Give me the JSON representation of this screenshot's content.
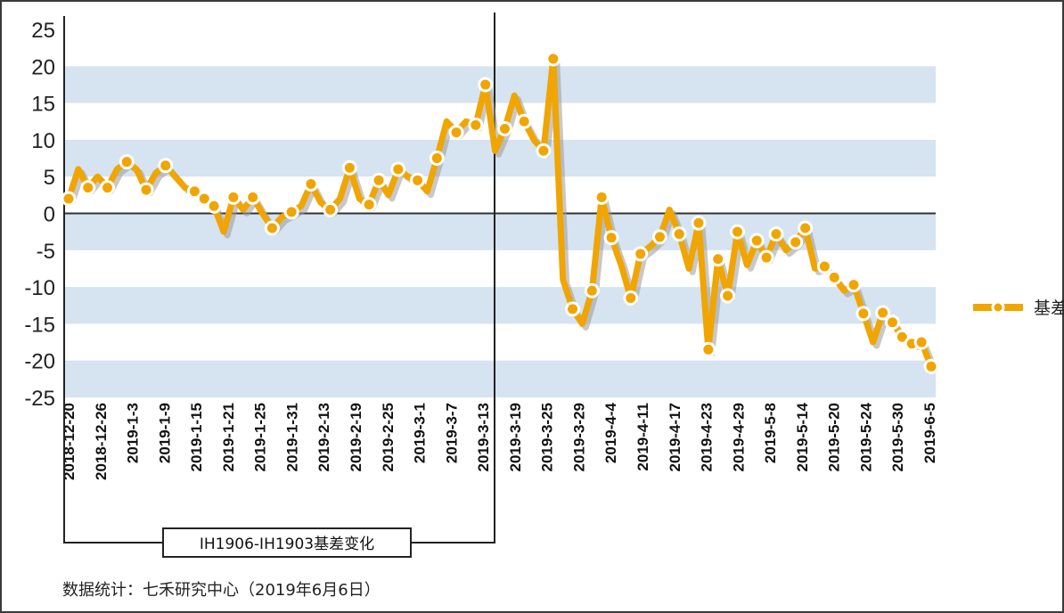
{
  "chart_data": {
    "type": "line",
    "title": "",
    "xlabel": "",
    "ylabel": "",
    "ylim": [
      -25,
      25
    ],
    "yticks": [
      25,
      20,
      15,
      10,
      5,
      0,
      -5,
      -10,
      -15,
      -20,
      -25
    ],
    "grid": "alternating horizontal bands",
    "legend_position": "right",
    "x_tick_labels": [
      "2018-12-20",
      "2018-12-26",
      "2019-1-3",
      "2019-1-9",
      "2019-1-15",
      "2019-1-21",
      "2019-1-25",
      "2019-1-31",
      "2019-2-13",
      "2019-2-19",
      "2019-2-25",
      "2019-3-1",
      "2019-3-7",
      "2019-3-13",
      "2019-3-19",
      "2019-3-25",
      "2019-3-29",
      "2019-4-4",
      "2019-4-11",
      "2019-4-17",
      "2019-4-23",
      "2019-4-29",
      "2019-5-8",
      "2019-5-14",
      "2019-5-20",
      "2019-5-24",
      "2019-5-30",
      "2019-6-5"
    ],
    "series": [
      {
        "name": "基差",
        "color": "#F0A500",
        "values": [
          2,
          6,
          3.5,
          5,
          3.5,
          6,
          7,
          6,
          3.2,
          5.5,
          6.5,
          5,
          3.5,
          3,
          2,
          1,
          -2.5,
          2.2,
          0.5,
          2.2,
          0,
          -2,
          -0.5,
          0.2,
          1,
          4,
          1.5,
          0.5,
          2,
          6.2,
          2,
          1.2,
          4.5,
          2.5,
          6,
          5,
          4.5,
          3,
          7.5,
          12.5,
          11,
          12.5,
          12,
          17.5,
          8.5,
          11.5,
          16,
          12.5,
          10,
          8.5,
          21,
          -9,
          -13,
          -15,
          -10.5,
          2.2,
          -3.3,
          -7,
          -11.5,
          -5.5,
          -4.5,
          -3.2,
          0.5,
          -2.8,
          -7.5,
          -1.3,
          -18.5,
          -6.2,
          -11.2,
          -2.5,
          -7,
          -3.7,
          -6,
          -2.8,
          -5,
          -3.9,
          -2,
          -7.5,
          -7.2,
          -8.7,
          -10.5,
          -9.7,
          -13.6,
          -17.5,
          -13.5,
          -14.8,
          -16.8,
          -17.7,
          -17.5,
          -20.8
        ],
        "markers": [
          [
            0,
            2
          ],
          [
            2,
            3.5
          ],
          [
            4,
            3.5
          ],
          [
            6,
            7
          ],
          [
            8,
            3.2
          ],
          [
            10,
            6.5
          ],
          [
            13,
            3
          ],
          [
            14,
            2
          ],
          [
            15,
            1
          ],
          [
            17,
            2.2
          ],
          [
            19,
            2.2
          ],
          [
            21,
            -2
          ],
          [
            23,
            0.2
          ],
          [
            25,
            4
          ],
          [
            27,
            0.5
          ],
          [
            29,
            6.2
          ],
          [
            31,
            1.2
          ],
          [
            32,
            4.5
          ],
          [
            34,
            6
          ],
          [
            36,
            4.5
          ],
          [
            38,
            7.5
          ],
          [
            40,
            11
          ],
          [
            42,
            12
          ],
          [
            43,
            17.5
          ],
          [
            45,
            11.5
          ],
          [
            47,
            12.5
          ],
          [
            49,
            8.5
          ],
          [
            50,
            21
          ],
          [
            52,
            -13
          ],
          [
            54,
            -10.5
          ],
          [
            55,
            2.2
          ],
          [
            56,
            -3.3
          ],
          [
            58,
            -11.5
          ],
          [
            59,
            -5.5
          ],
          [
            61,
            -3.2
          ],
          [
            63,
            -2.8
          ],
          [
            65,
            -1.3
          ],
          [
            66,
            -18.5
          ],
          [
            67,
            -6.2
          ],
          [
            68,
            -11.2
          ],
          [
            69,
            -2.5
          ],
          [
            71,
            -3.7
          ],
          [
            72,
            -6
          ],
          [
            73,
            -2.8
          ],
          [
            75,
            -3.9
          ],
          [
            76,
            -2
          ],
          [
            78,
            -7.2
          ],
          [
            79,
            -8.7
          ],
          [
            81,
            -9.7
          ],
          [
            82,
            -13.6
          ],
          [
            84,
            -13.5
          ],
          [
            85,
            -14.8
          ],
          [
            86,
            -16.8
          ],
          [
            87,
            -17.7
          ],
          [
            88,
            -17.5
          ],
          [
            89,
            -20.8
          ]
        ]
      }
    ],
    "annotation": "IH1906-IH1903基差变化"
  },
  "footer_text": "数据统计：七禾研究中心（2019年6月6日）"
}
